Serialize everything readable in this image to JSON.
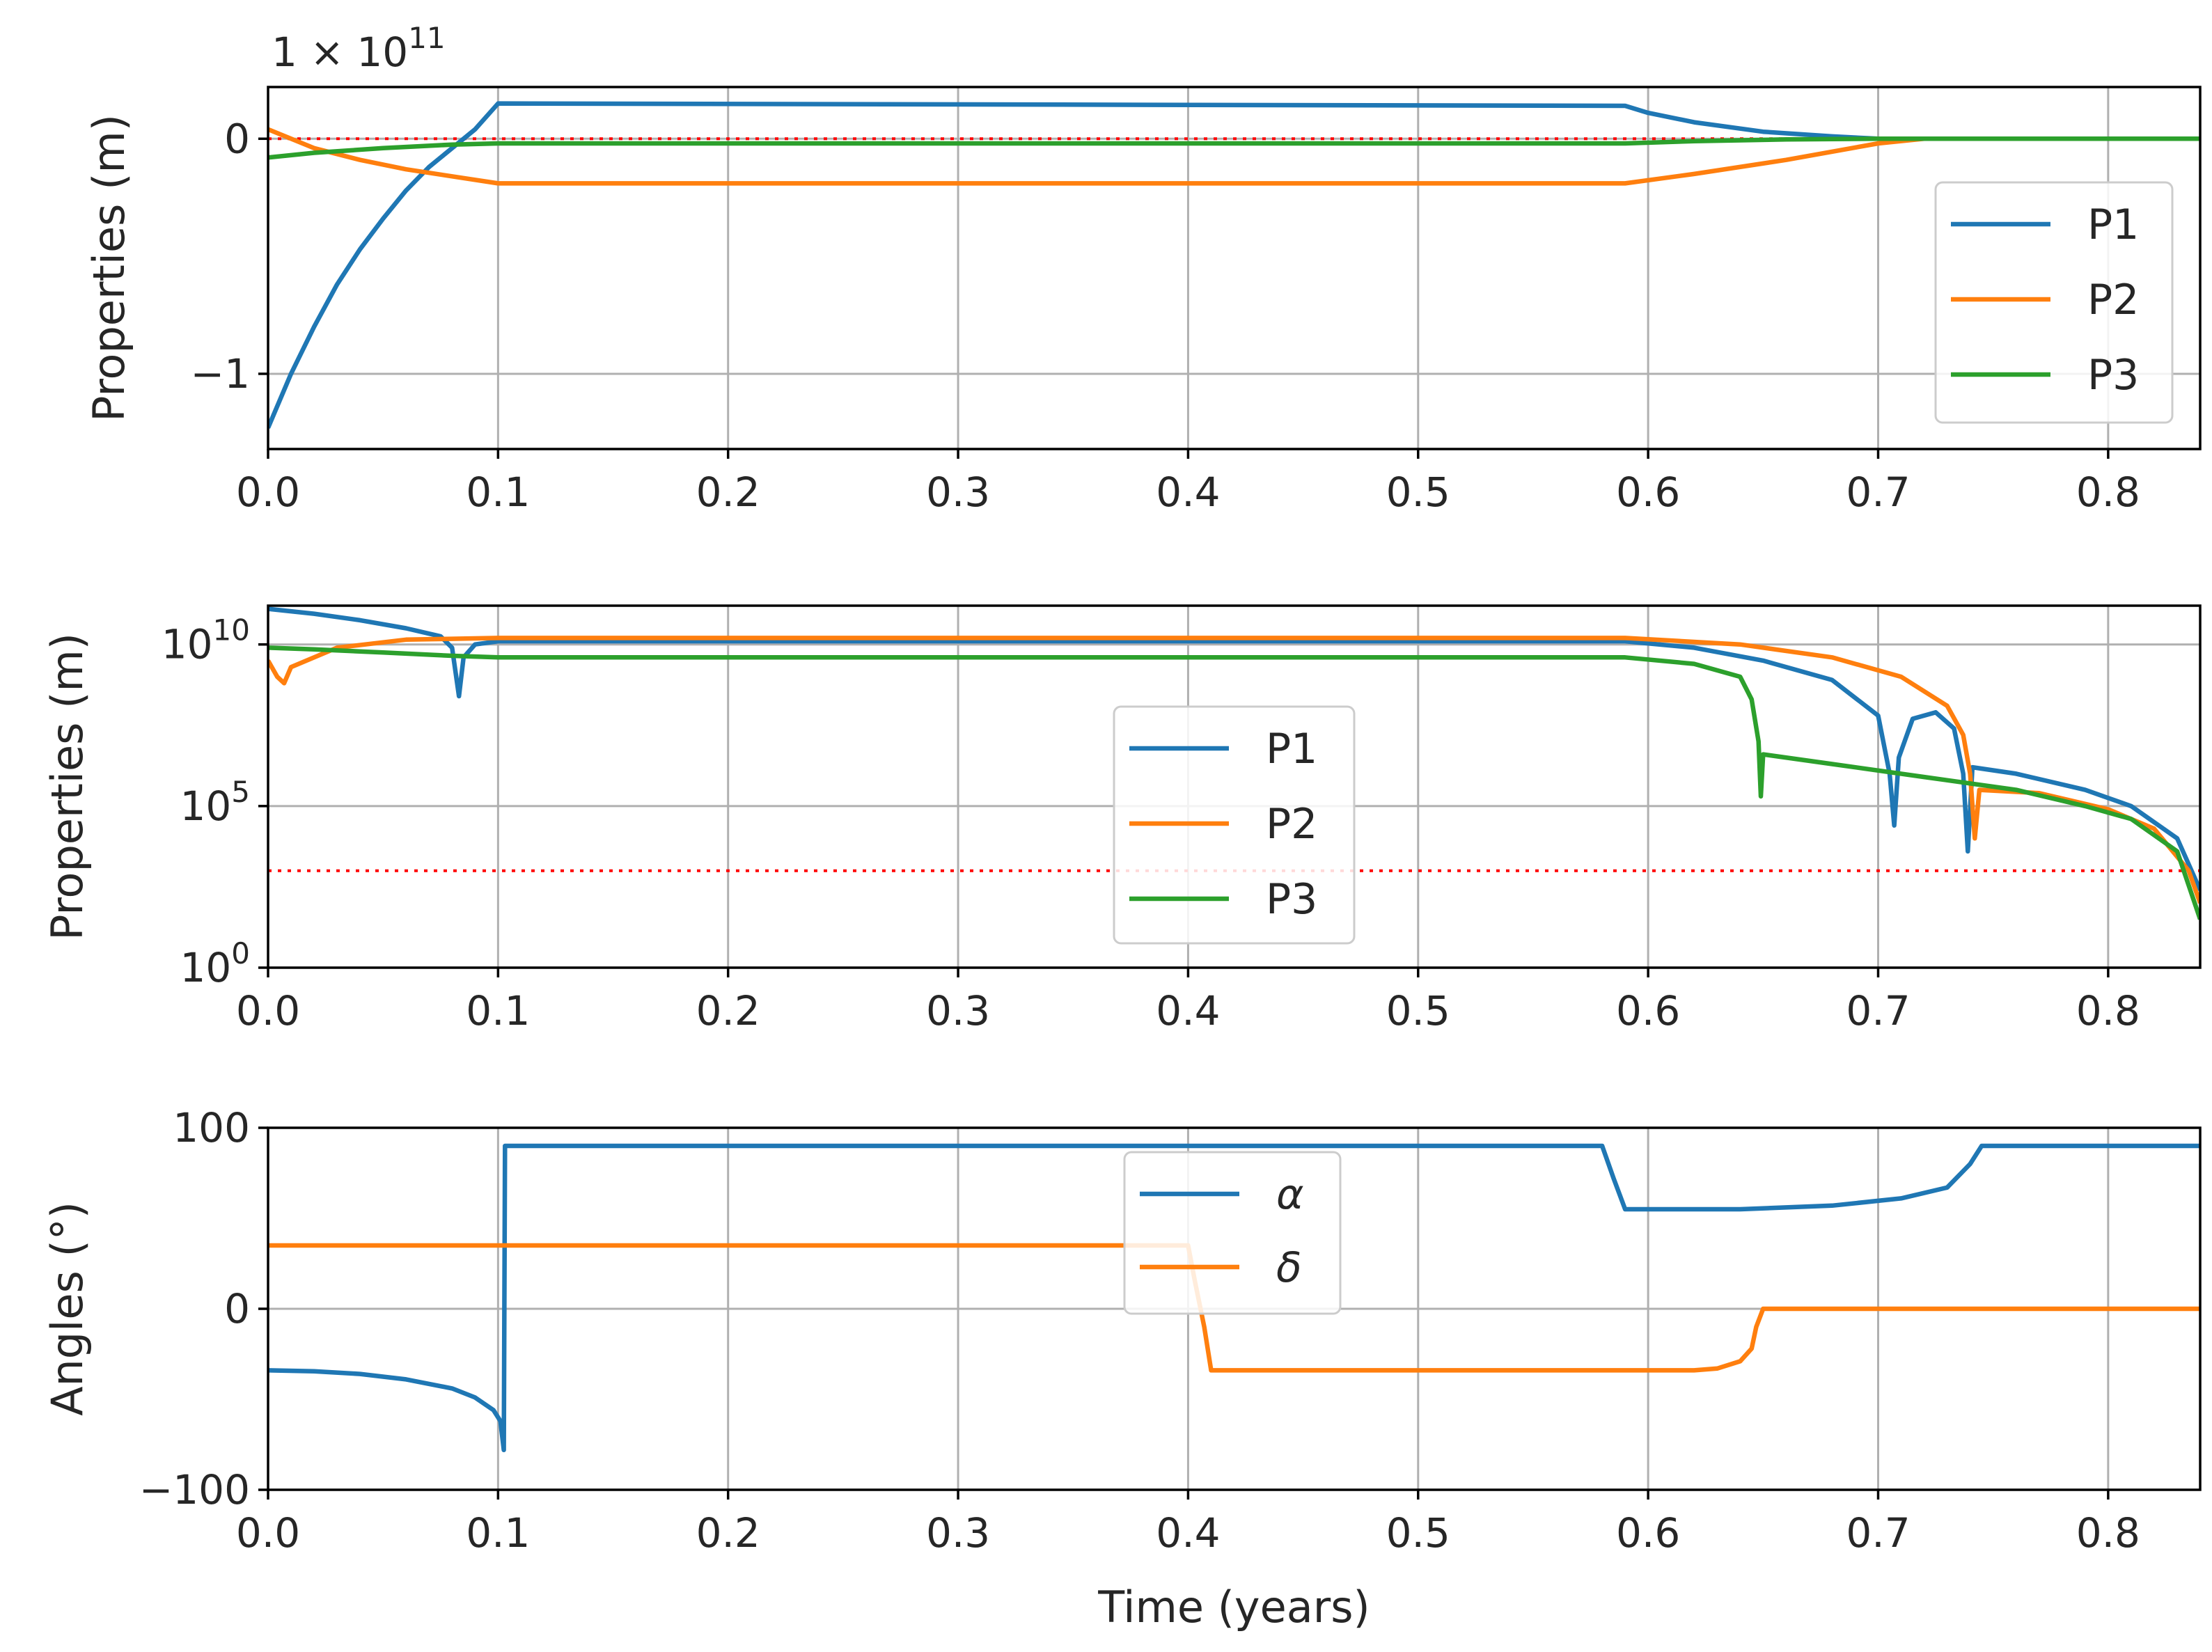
{
  "colors": {
    "p1": "#1f77b4",
    "p2": "#ff7f0e",
    "p3": "#2ca02c",
    "reference": "#ff0000"
  },
  "chart_data": [
    {
      "id": "top",
      "type": "line",
      "ylabel": "Properties (m)",
      "xlabel": "",
      "scale": "linear",
      "offset_label": {
        "mantissa": "1 × 10",
        "exponent": "11"
      },
      "xlim": [
        0,
        0.84
      ],
      "ylim": [
        -1.32,
        0.22
      ],
      "xticks": [
        0.0,
        0.1,
        0.2,
        0.3,
        0.4,
        0.5,
        0.6,
        0.7,
        0.8
      ],
      "xtick_labels": [
        "0.0",
        "0.1",
        "0.2",
        "0.3",
        "0.4",
        "0.5",
        "0.6",
        "0.7",
        "0.8"
      ],
      "yticks": [
        0,
        -1
      ],
      "ytick_labels": [
        "0",
        "−1"
      ],
      "legend": {
        "position": "right",
        "entries": [
          "P1",
          "P2",
          "P3"
        ]
      },
      "reference_line": {
        "y": 0,
        "color": "#ff0000",
        "style": "dotted"
      },
      "series": [
        {
          "name": "P1",
          "color": "#1f77b4",
          "points": [
            [
              0,
              -1.23
            ],
            [
              0.01,
              -1.0
            ],
            [
              0.02,
              -0.8
            ],
            [
              0.03,
              -0.62
            ],
            [
              0.04,
              -0.47
            ],
            [
              0.05,
              -0.34
            ],
            [
              0.06,
              -0.22
            ],
            [
              0.07,
              -0.12
            ],
            [
              0.08,
              -0.04
            ],
            [
              0.09,
              0.04
            ],
            [
              0.1,
              0.15
            ],
            [
              0.59,
              0.14
            ],
            [
              0.6,
              0.11
            ],
            [
              0.62,
              0.07
            ],
            [
              0.65,
              0.03
            ],
            [
              0.68,
              0.01
            ],
            [
              0.7,
              0
            ],
            [
              0.84,
              0
            ]
          ]
        },
        {
          "name": "P2",
          "color": "#ff7f0e",
          "points": [
            [
              0,
              0.04
            ],
            [
              0.005,
              0.02
            ],
            [
              0.02,
              -0.04
            ],
            [
              0.04,
              -0.09
            ],
            [
              0.06,
              -0.13
            ],
            [
              0.08,
              -0.16
            ],
            [
              0.1,
              -0.19
            ],
            [
              0.59,
              -0.19
            ],
            [
              0.62,
              -0.15
            ],
            [
              0.66,
              -0.09
            ],
            [
              0.7,
              -0.02
            ],
            [
              0.72,
              0
            ],
            [
              0.84,
              0
            ]
          ]
        },
        {
          "name": "P3",
          "color": "#2ca02c",
          "points": [
            [
              0,
              -0.08
            ],
            [
              0.02,
              -0.06
            ],
            [
              0.05,
              -0.04
            ],
            [
              0.08,
              -0.025
            ],
            [
              0.1,
              -0.02
            ],
            [
              0.59,
              -0.02
            ],
            [
              0.62,
              -0.01
            ],
            [
              0.66,
              -0.003
            ],
            [
              0.7,
              0
            ],
            [
              0.84,
              0
            ]
          ]
        }
      ]
    },
    {
      "id": "middle",
      "type": "line",
      "ylabel": "Properties (m)",
      "xlabel": "",
      "scale": "log",
      "xlim": [
        0,
        0.84
      ],
      "ylim_log10": [
        0,
        11.2
      ],
      "xticks": [
        0.0,
        0.1,
        0.2,
        0.3,
        0.4,
        0.5,
        0.6,
        0.7,
        0.8
      ],
      "xtick_labels": [
        "0.0",
        "0.1",
        "0.2",
        "0.3",
        "0.4",
        "0.5",
        "0.6",
        "0.7",
        "0.8"
      ],
      "yticks_log10": [
        0,
        5,
        10
      ],
      "ytick_labels": [
        {
          "base": "10",
          "exponent": "0"
        },
        {
          "base": "10",
          "exponent": "5"
        },
        {
          "base": "10",
          "exponent": "10"
        }
      ],
      "legend": {
        "position": "center",
        "entries": [
          "P1",
          "P2",
          "P3"
        ]
      },
      "reference_line": {
        "log10_y": 3.0,
        "color": "#ff0000",
        "style": "dotted"
      },
      "series": [
        {
          "name": "P1",
          "color": "#1f77b4",
          "points_log10": [
            [
              0,
              11.1
            ],
            [
              0.02,
              10.95
            ],
            [
              0.04,
              10.75
            ],
            [
              0.06,
              10.5
            ],
            [
              0.075,
              10.25
            ],
            [
              0.08,
              9.9
            ],
            [
              0.083,
              8.4
            ],
            [
              0.085,
              9.6
            ],
            [
              0.09,
              10.0
            ],
            [
              0.1,
              10.1
            ],
            [
              0.59,
              10.1
            ],
            [
              0.62,
              9.9
            ],
            [
              0.65,
              9.5
            ],
            [
              0.68,
              8.9
            ],
            [
              0.7,
              7.8
            ],
            [
              0.705,
              6.0
            ],
            [
              0.707,
              4.4
            ],
            [
              0.709,
              6.5
            ],
            [
              0.715,
              7.7
            ],
            [
              0.725,
              7.9
            ],
            [
              0.733,
              7.4
            ],
            [
              0.737,
              6.0
            ],
            [
              0.739,
              3.6
            ],
            [
              0.741,
              6.2
            ],
            [
              0.76,
              6.0
            ],
            [
              0.79,
              5.5
            ],
            [
              0.81,
              5.0
            ],
            [
              0.83,
              4.0
            ],
            [
              0.84,
              2.4
            ]
          ]
        },
        {
          "name": "P2",
          "color": "#ff7f0e",
          "points_log10": [
            [
              0,
              9.5
            ],
            [
              0.004,
              9.0
            ],
            [
              0.007,
              8.8
            ],
            [
              0.01,
              9.3
            ],
            [
              0.03,
              9.9
            ],
            [
              0.06,
              10.15
            ],
            [
              0.1,
              10.2
            ],
            [
              0.59,
              10.2
            ],
            [
              0.64,
              10.0
            ],
            [
              0.68,
              9.6
            ],
            [
              0.71,
              9.0
            ],
            [
              0.73,
              8.1
            ],
            [
              0.737,
              7.2
            ],
            [
              0.74,
              6.0
            ],
            [
              0.742,
              4.0
            ],
            [
              0.744,
              5.5
            ],
            [
              0.77,
              5.4
            ],
            [
              0.8,
              4.9
            ],
            [
              0.82,
              4.3
            ],
            [
              0.835,
              3.0
            ],
            [
              0.84,
              2.0
            ]
          ]
        },
        {
          "name": "P3",
          "color": "#2ca02c",
          "points_log10": [
            [
              0,
              9.9
            ],
            [
              0.02,
              9.85
            ],
            [
              0.05,
              9.75
            ],
            [
              0.08,
              9.65
            ],
            [
              0.1,
              9.6
            ],
            [
              0.59,
              9.6
            ],
            [
              0.62,
              9.4
            ],
            [
              0.64,
              9.0
            ],
            [
              0.645,
              8.3
            ],
            [
              0.648,
              7.0
            ],
            [
              0.649,
              5.3
            ],
            [
              0.65,
              6.6
            ],
            [
              0.68,
              6.3
            ],
            [
              0.72,
              5.9
            ],
            [
              0.76,
              5.5
            ],
            [
              0.79,
              5.0
            ],
            [
              0.81,
              4.6
            ],
            [
              0.83,
              3.6
            ],
            [
              0.84,
              1.5
            ]
          ]
        }
      ]
    },
    {
      "id": "bottom",
      "type": "line",
      "ylabel": "Angles (°)",
      "xlabel": "Time (years)",
      "scale": "linear",
      "xlim": [
        0,
        0.84
      ],
      "ylim": [
        -100,
        100
      ],
      "xticks": [
        0.0,
        0.1,
        0.2,
        0.3,
        0.4,
        0.5,
        0.6,
        0.7,
        0.8
      ],
      "xtick_labels": [
        "0.0",
        "0.1",
        "0.2",
        "0.3",
        "0.4",
        "0.5",
        "0.6",
        "0.7",
        "0.8"
      ],
      "yticks": [
        100,
        0,
        -100
      ],
      "ytick_labels": [
        "100",
        "0",
        "−100"
      ],
      "legend": {
        "position": "upper center",
        "entries": [
          "α",
          "δ"
        ]
      },
      "series": [
        {
          "name": "α",
          "color": "#1f77b4",
          "points": [
            [
              0,
              -34
            ],
            [
              0.02,
              -34.5
            ],
            [
              0.04,
              -36
            ],
            [
              0.06,
              -39
            ],
            [
              0.08,
              -44
            ],
            [
              0.09,
              -49
            ],
            [
              0.098,
              -56
            ],
            [
              0.101,
              -62
            ],
            [
              0.1025,
              -78
            ],
            [
              0.103,
              90
            ],
            [
              0.58,
              90
            ],
            [
              0.585,
              72
            ],
            [
              0.59,
              55
            ],
            [
              0.64,
              55
            ],
            [
              0.68,
              57
            ],
            [
              0.71,
              61
            ],
            [
              0.73,
              67
            ],
            [
              0.74,
              80
            ],
            [
              0.745,
              90
            ],
            [
              0.84,
              90
            ]
          ]
        },
        {
          "name": "δ",
          "color": "#ff7f0e",
          "points": [
            [
              0,
              35
            ],
            [
              0.4,
              35
            ],
            [
              0.403,
              15
            ],
            [
              0.407,
              -10
            ],
            [
              0.41,
              -34
            ],
            [
              0.62,
              -34
            ],
            [
              0.63,
              -33
            ],
            [
              0.64,
              -29
            ],
            [
              0.645,
              -22
            ],
            [
              0.647,
              -10
            ],
            [
              0.65,
              0
            ],
            [
              0.84,
              0
            ]
          ]
        }
      ]
    }
  ]
}
